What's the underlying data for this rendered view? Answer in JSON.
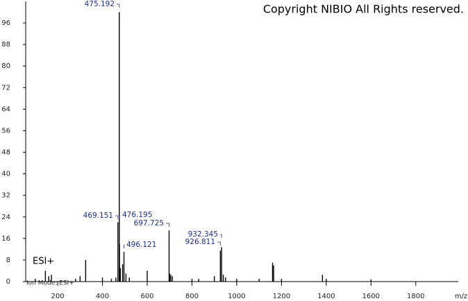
{
  "chart_data": {
    "type": "spectrum",
    "watermark": "Copyright NIBIO All Rights reserved.",
    "mode_label": "ESI+",
    "footer": "Ion Mode: ESI+",
    "x_label": "m/z",
    "xlim": [
      57,
      1990
    ],
    "ylim": [
      0,
      104
    ],
    "xticks": [
      200,
      400,
      600,
      800,
      1000,
      1200,
      1400,
      1600,
      1800
    ],
    "yticks": [
      0,
      8,
      16,
      24,
      32,
      40,
      48,
      56,
      64,
      72,
      80,
      88,
      96
    ],
    "color": "#000000",
    "label_color": "#1c2f8c",
    "peaks": {
      "x": [
        469.151,
        475.192,
        476.195,
        496.121,
        697.725,
        926.811,
        932.345
      ],
      "values": [
        22,
        100,
        14,
        11,
        19,
        11.5,
        12.8
      ]
    },
    "minor_peaks": {
      "x": [
        100,
        145,
        160,
        172,
        280,
        300,
        325,
        400,
        440,
        460,
        480,
        490,
        505,
        520,
        600,
        700,
        705,
        712,
        800,
        830,
        900,
        940,
        950,
        1000,
        1100,
        1160,
        1165,
        1200,
        1383,
        1400,
        1600
      ],
      "values": [
        1,
        4,
        2,
        2.5,
        1,
        2,
        8,
        1.5,
        1,
        1.5,
        5,
        6.5,
        3,
        1.5,
        4,
        3,
        2.5,
        2,
        1,
        1,
        2,
        2.5,
        1.5,
        1,
        1,
        7,
        6,
        1,
        2.5,
        1,
        0.8
      ]
    }
  }
}
